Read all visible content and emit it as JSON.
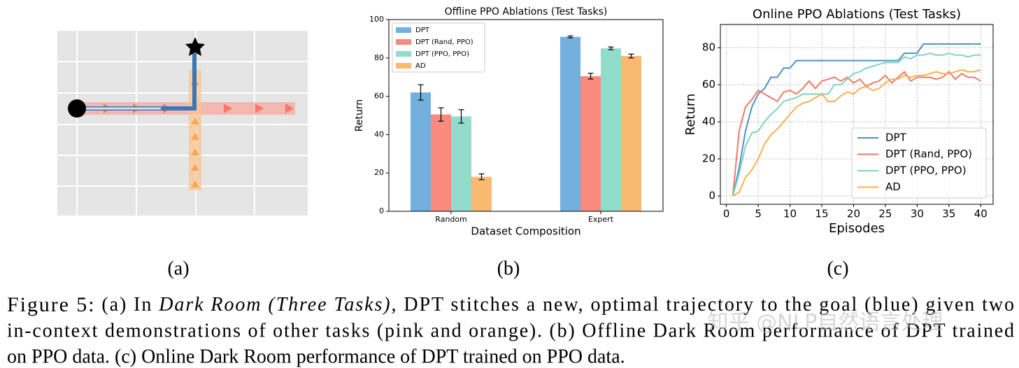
{
  "panel_labels": [
    "(a)",
    "(b)",
    "(c)"
  ],
  "chart_data": [
    {
      "type": "bar",
      "title": "Offline PPO Ablations (Test Tasks)",
      "x_label": "Dataset Composition",
      "y_label": "Return",
      "categories": [
        "Random",
        "Expert"
      ],
      "series": [
        {
          "name": "DPT",
          "color": "#74b0de",
          "values": [
            62,
            91
          ],
          "errors": [
            4,
            0.5
          ]
        },
        {
          "name": "DPT (Rand, PPO)",
          "color": "#f88b7d",
          "values": [
            50.5,
            70.5
          ],
          "errors": [
            3.5,
            1.5
          ]
        },
        {
          "name": "DPT (PPO, PPO)",
          "color": "#93dccb",
          "values": [
            49.5,
            85
          ],
          "errors": [
            3.5,
            0.7
          ]
        },
        {
          "name": "AD",
          "color": "#f9b970",
          "values": [
            18,
            81
          ],
          "errors": [
            1.5,
            1
          ]
        }
      ],
      "ylim": [
        0,
        100
      ],
      "yticks": [
        0,
        20,
        40,
        60,
        80,
        100
      ],
      "grid": false,
      "legend": "upper left"
    },
    {
      "type": "line",
      "title": "Online PPO Ablations (Test Tasks)",
      "x_label": "Episodes",
      "y_label": "Return",
      "x": [
        1,
        2,
        3,
        4,
        5,
        6,
        7,
        8,
        9,
        10,
        11,
        12,
        13,
        14,
        15,
        16,
        17,
        18,
        19,
        20,
        21,
        22,
        23,
        24,
        25,
        26,
        27,
        28,
        29,
        30,
        31,
        32,
        33,
        34,
        35,
        36,
        37,
        38,
        39,
        40
      ],
      "series": [
        {
          "name": "DPT",
          "color": "#4c92c3",
          "values": [
            0,
            15,
            35,
            48,
            55,
            58,
            64,
            64,
            69,
            69,
            73,
            73,
            73,
            73,
            73,
            73,
            73,
            73,
            73,
            73,
            73,
            73,
            73,
            73,
            73,
            73,
            73,
            77,
            77,
            77,
            82,
            82,
            82,
            82,
            82,
            82,
            82,
            82,
            82,
            82
          ]
        },
        {
          "name": "DPT (Rand, PPO)",
          "color": "#f07a6a",
          "values": [
            0,
            35,
            48,
            52,
            57,
            55,
            53,
            51,
            56,
            57,
            55,
            58,
            62,
            58,
            62,
            63,
            64,
            62,
            64,
            61,
            63,
            59,
            61,
            62,
            65,
            61,
            64,
            67,
            62,
            64,
            64,
            64,
            63,
            64,
            67,
            63,
            66,
            64,
            64,
            62
          ]
        },
        {
          "name": "DPT (PPO, PPO)",
          "color": "#7fd3c3",
          "values": [
            0,
            12,
            27,
            34,
            35,
            40,
            44,
            47,
            51,
            52,
            53,
            55,
            55,
            55,
            55,
            55,
            60,
            60,
            63,
            66,
            67,
            69,
            70,
            71,
            72,
            72,
            72,
            75,
            74,
            76,
            76,
            77,
            76,
            76,
            77,
            76,
            76,
            75,
            76,
            76
          ]
        },
        {
          "name": "AD",
          "color": "#f5b24e",
          "values": [
            0,
            2,
            10,
            14,
            20,
            28,
            33,
            36,
            40,
            44,
            48,
            50,
            51,
            53,
            55,
            51,
            51,
            54,
            56,
            55,
            58,
            59,
            57,
            58,
            61,
            63,
            63,
            65,
            64,
            65,
            65,
            66,
            67,
            66,
            66,
            67,
            68,
            67,
            67,
            68
          ]
        }
      ],
      "xlim": [
        -0.95,
        41.95
      ],
      "xticks": [
        0,
        5,
        10,
        15,
        20,
        25,
        30,
        35,
        40
      ],
      "ylim": [
        -4.5,
        92.5
      ],
      "yticks": [
        0,
        20,
        40,
        60,
        80
      ],
      "grid": true,
      "legend": "lower right"
    }
  ],
  "caption": {
    "lines": [
      {
        "label": "Figure 5:",
        "text": "(a) In ",
        "italic": "Dark Room (Three Tasks)",
        "rest": ", DPT stitches a new, optimal trajectory to the goal (blue) given two"
      },
      {
        "text": "in-context demonstrations of other tasks (pink and orange). (b) Offline Dark Room performance of DPT trained"
      },
      {
        "text": "on PPO data. (c) Online Dark Room performance of DPT trained on PPO data."
      }
    ]
  },
  "watermark": "知乎 @NLP自然语言处理"
}
